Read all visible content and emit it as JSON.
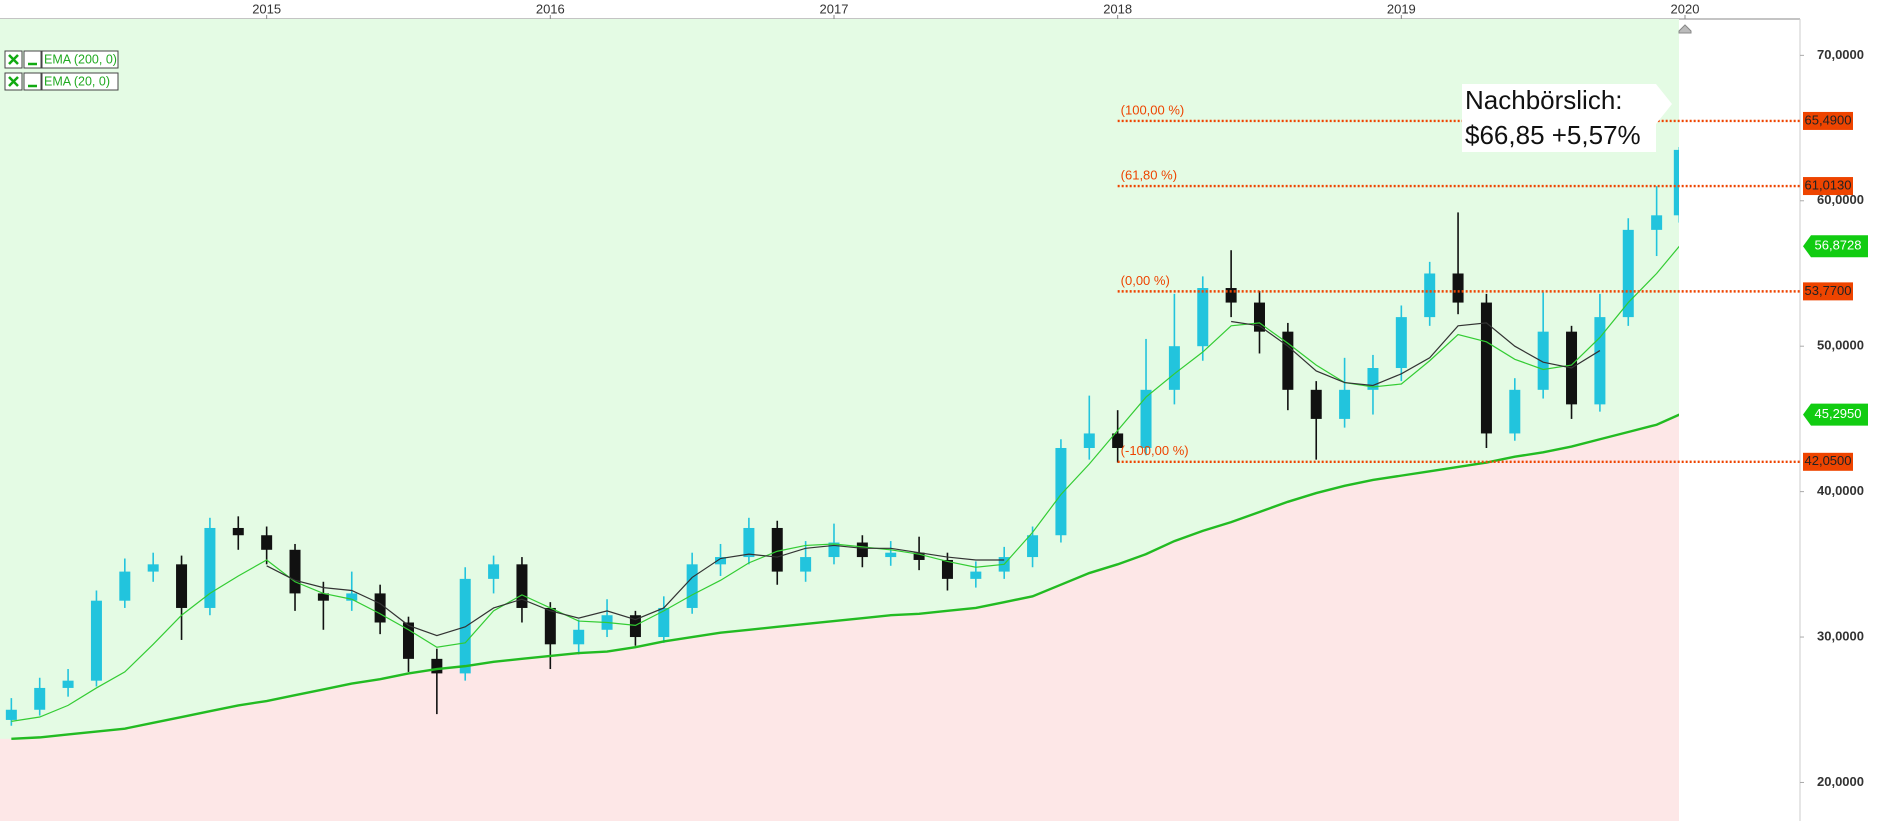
{
  "chart_data": {
    "type": "candlestick",
    "x": [
      2014.1,
      2014.2,
      2014.3,
      2014.4,
      2014.5,
      2014.6,
      2014.7,
      2014.8,
      2014.9,
      2015.0,
      2015.1,
      2015.2,
      2015.3,
      2015.4,
      2015.5,
      2015.6,
      2015.7,
      2015.8,
      2015.9,
      2016.0,
      2016.1,
      2016.2,
      2016.3,
      2016.4,
      2016.5,
      2016.6,
      2016.7,
      2016.8,
      2016.9,
      2017.0,
      2017.1,
      2017.2,
      2017.3,
      2017.4,
      2017.5,
      2017.6,
      2017.7,
      2017.8,
      2017.9,
      2018.0,
      2018.1,
      2018.2,
      2018.3,
      2018.4,
      2018.5,
      2018.6,
      2018.7,
      2018.8,
      2018.9,
      2019.0,
      2019.1,
      2019.2,
      2019.3,
      2019.4,
      2019.5,
      2019.6,
      2019.7,
      2019.8,
      2019.9,
      2019.98
    ],
    "open": [
      24.3,
      25,
      26.5,
      27,
      32.5,
      34.5,
      35,
      32,
      37.5,
      37,
      36,
      33,
      32.5,
      33,
      31,
      28.5,
      27.5,
      34,
      35,
      32,
      29.5,
      30.5,
      31.5,
      30,
      32,
      35,
      35.5,
      37.5,
      34.5,
      35.5,
      36.5,
      35.5,
      35.8,
      35.3,
      34,
      34.5,
      35.5,
      37,
      43,
      44,
      43,
      47,
      50,
      54,
      53,
      51,
      47,
      45,
      47,
      48.5,
      52,
      55,
      53,
      44,
      47,
      51,
      46,
      52,
      58,
      59
    ],
    "high": [
      25.8,
      27.2,
      27.8,
      33.2,
      35.4,
      35.8,
      35.6,
      38.2,
      38.3,
      37.6,
      36.4,
      33.8,
      34.5,
      33.6,
      31.4,
      29.2,
      34.8,
      35.6,
      35.5,
      32.4,
      31.2,
      32.6,
      31.8,
      32.8,
      35.8,
      36.4,
      38.2,
      38,
      36.6,
      37.8,
      37,
      36.6,
      36.9,
      35.8,
      35.2,
      36.2,
      37.6,
      43.6,
      46.6,
      45.6,
      50.5,
      53.6,
      54.8,
      56.6,
      53.8,
      51.6,
      47.6,
      49.2,
      49.4,
      52.8,
      55.8,
      59.2,
      53.6,
      47.8,
      53.7,
      51.4,
      53.6,
      58.8,
      61,
      63.7
    ],
    "low": [
      23.9,
      24.6,
      25.9,
      26.6,
      32,
      33.8,
      29.8,
      31.5,
      36,
      35,
      31.8,
      30.5,
      31.8,
      30.2,
      27.6,
      24.7,
      27,
      33,
      31,
      27.8,
      28.8,
      30,
      29.4,
      29.6,
      31.6,
      34.2,
      35,
      33.6,
      33.8,
      35,
      34.8,
      34.9,
      34.6,
      33.2,
      33.4,
      34,
      34.8,
      36.5,
      42.2,
      42,
      42.5,
      46,
      49,
      52,
      49.5,
      45.6,
      42.2,
      44.4,
      45.3,
      47.6,
      51.4,
      52.2,
      43,
      43.5,
      46.4,
      45,
      45.5,
      51.4,
      56.2,
      58.5
    ],
    "close": [
      25,
      26.5,
      27,
      32.5,
      34.5,
      35,
      32,
      37.5,
      37,
      36,
      33,
      32.5,
      33,
      31,
      28.5,
      27.5,
      34,
      35,
      32,
      29.5,
      30.5,
      31.5,
      30,
      32,
      35,
      35.5,
      37.5,
      34.5,
      35.5,
      36.5,
      35.5,
      35.8,
      35.3,
      34,
      34.5,
      35.5,
      37,
      43,
      44,
      43,
      47,
      50,
      54,
      53,
      51,
      47,
      45,
      47,
      48.5,
      52,
      55,
      53,
      44,
      47,
      51,
      46,
      52,
      58,
      59,
      63.5
    ],
    "up_color": "#22c4dd",
    "down_color": "#111111",
    "series": [
      {
        "name": "EMA (200, 0)",
        "color": "#22bb22",
        "last_label": "45,2950",
        "values": [
          23.0,
          23.1,
          23.3,
          23.5,
          23.7,
          24.1,
          24.5,
          24.9,
          25.3,
          25.6,
          26.0,
          26.4,
          26.8,
          27.1,
          27.5,
          27.8,
          28.0,
          28.3,
          28.5,
          28.7,
          28.9,
          29.0,
          29.3,
          29.7,
          30.0,
          30.3,
          30.5,
          30.7,
          30.9,
          31.1,
          31.3,
          31.5,
          31.6,
          31.8,
          32.0,
          32.4,
          32.8,
          33.6,
          34.4,
          35.0,
          35.7,
          36.6,
          37.3,
          37.9,
          38.6,
          39.3,
          39.9,
          40.4,
          40.8,
          41.1,
          41.4,
          41.7,
          42.0,
          42.4,
          42.7,
          43.1,
          43.6,
          44.1,
          44.6,
          45.295
        ]
      },
      {
        "name": "EMA (20, 0)",
        "color": "#33cc33",
        "last_label": "56,8728",
        "values": [
          24.2,
          24.5,
          25.3,
          26.5,
          27.6,
          29.5,
          31.5,
          33.0,
          34.2,
          35.3,
          33.8,
          33.0,
          32.6,
          31.6,
          30.5,
          29.3,
          29.6,
          31.8,
          32.9,
          32.0,
          31.1,
          31.0,
          30.8,
          31.8,
          32.9,
          33.9,
          35.1,
          35.9,
          36.3,
          36.4,
          36.2,
          36.0,
          35.7,
          35.2,
          34.8,
          35.0,
          37.2,
          39.8,
          41.9,
          44.2,
          46.5,
          48.1,
          49.6,
          51.4,
          51.6,
          50.2,
          48.7,
          47.5,
          47.2,
          47.4,
          49.0,
          50.8,
          50.3,
          49.1,
          48.4,
          48.7,
          50.6,
          53.0,
          55.0,
          56.8728
        ]
      },
      {
        "color": "#333333",
        "values": [
          null,
          null,
          null,
          null,
          null,
          null,
          null,
          null,
          null,
          34.9,
          33.9,
          33.4,
          33.2,
          32.3,
          30.8,
          30.1,
          30.7,
          32.0,
          32.6,
          31.8,
          31.3,
          31.8,
          31.2,
          32.0,
          34.1,
          35.4,
          35.7,
          35.5,
          36.1,
          36.3,
          36.1,
          36.1,
          35.8,
          35.5,
          35.3,
          35.3,
          null,
          null,
          null,
          null,
          null,
          null,
          null,
          51.7,
          51.4,
          50.0,
          48.3,
          47.5,
          47.3,
          48.1,
          49.2,
          51.4,
          51.6,
          50.0,
          48.9,
          48.5,
          49.7,
          null,
          null,
          null
        ]
      }
    ],
    "levels": [
      {
        "label": "(100,00 %)",
        "value": 65.49,
        "value_label": "65,4900",
        "x": 2018.0
      },
      {
        "label": "(61,80 %)",
        "value": 61.013,
        "value_label": "61,0130",
        "x": 2018.0
      },
      {
        "label": "(0,00 %)",
        "value": 53.77,
        "value_label": "53,7700",
        "x": 2018.0
      },
      {
        "label": "(-100,00 %)",
        "value": 42.05,
        "value_label": "42,0500",
        "x": 2018.0
      }
    ],
    "level_color": "#ee4400",
    "annotation": [
      "Nachbörslich:",
      "$66,85 +5,57%"
    ],
    "xlim": [
      2014.06,
      2020.0
    ],
    "xticks": [
      2015,
      2016,
      2017,
      2018,
      2019,
      2020
    ],
    "ylim": [
      17.35,
      72.5
    ],
    "yticks": [
      {
        "value": 20,
        "label": "20,0000"
      },
      {
        "value": 30,
        "label": "30,0000"
      },
      {
        "value": 40,
        "label": "40,0000"
      },
      {
        "value": 50,
        "label": "50,0000"
      },
      {
        "value": 60,
        "label": "60,0000"
      },
      {
        "value": 70,
        "label": "70,0000"
      }
    ],
    "above_color": "#e4fbe4",
    "below_color": "#fde7e7"
  }
}
